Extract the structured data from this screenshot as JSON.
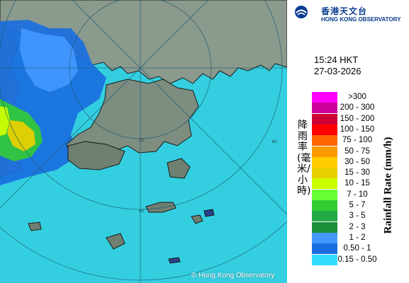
{
  "header": {
    "org_name_cn": "香港天文台",
    "org_name_en": "HONG KONG OBSERVATORY"
  },
  "timestamp": {
    "time": "15:24 HKT",
    "date": "27-03-2026"
  },
  "legend": {
    "axis_label_cn": "降雨率(毫米/小時)",
    "axis_label_en": "Rainfall Rate (mm/h)",
    "entries": [
      {
        "label": ">300",
        "color": "#ff00ff"
      },
      {
        "label": "200 - 300",
        "color": "#cc0099"
      },
      {
        "label": "150 - 200",
        "color": "#cc0033"
      },
      {
        "label": "100 - 150",
        "color": "#ff0000"
      },
      {
        "label": "75 - 100",
        "color": "#ff6600"
      },
      {
        "label": "50 - 75",
        "color": "#ff9900"
      },
      {
        "label": "30 - 50",
        "color": "#ffcc00"
      },
      {
        "label": "15 - 30",
        "color": "#e6d000"
      },
      {
        "label": "10 - 15",
        "color": "#ccff00"
      },
      {
        "label": "7 - 10",
        "color": "#66ff33"
      },
      {
        "label": "5 - 7",
        "color": "#33cc33"
      },
      {
        "label": "3 - 5",
        "color": "#22aa44"
      },
      {
        "label": "2 - 3",
        "color": "#1a8f3a"
      },
      {
        "label": "1 - 2",
        "color": "#4499ff"
      },
      {
        "label": "0.50 - 1",
        "color": "#1a6fe0"
      },
      {
        "label": "0.15 - 0.50",
        "color": "#33ddff"
      }
    ]
  },
  "map": {
    "range_rings_km": [
      "20",
      "40",
      "60"
    ],
    "sea_color": "#33cfe0",
    "copyright": "© Hong Kong Observatory"
  }
}
